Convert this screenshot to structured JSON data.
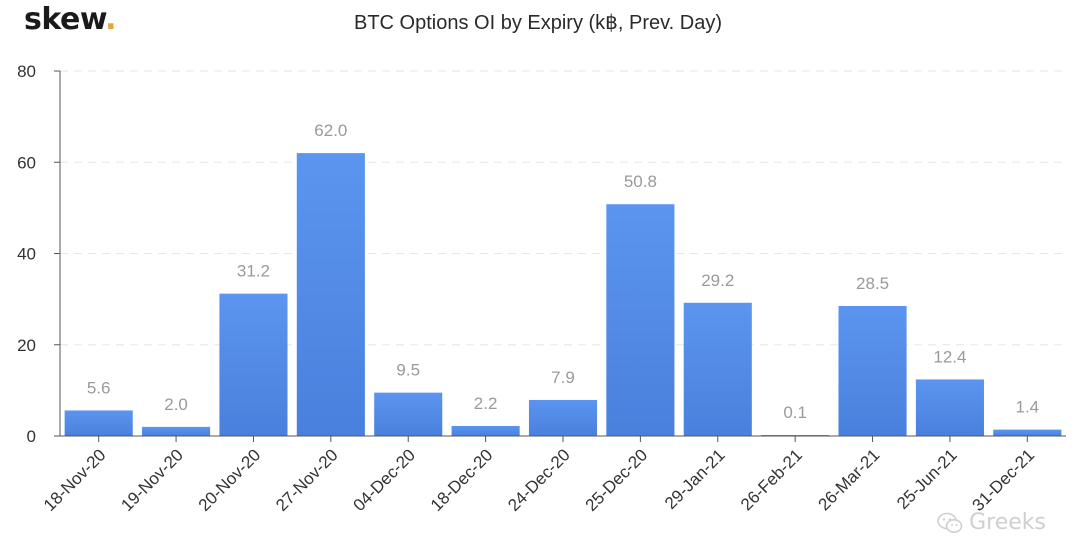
{
  "brand": {
    "name": "skew",
    "dot": ".",
    "dot_color": "#e8a33d"
  },
  "watermark": {
    "text": "Greeks",
    "icon": "wechat-icon"
  },
  "colors": {
    "bar_top": "#5b95f0",
    "bar_bottom": "#4a80dd",
    "grid": "#e6e6e6",
    "axis": "#555555",
    "label": "#9a9a9a"
  },
  "chart_data": {
    "type": "bar",
    "title": "BTC Options OI by Expiry (k฿, Prev. Day)",
    "categories": [
      "18-Nov-20",
      "19-Nov-20",
      "20-Nov-20",
      "27-Nov-20",
      "04-Dec-20",
      "18-Dec-20",
      "24-Dec-20",
      "25-Dec-20",
      "29-Jan-21",
      "26-Feb-21",
      "26-Mar-21",
      "25-Jun-21",
      "31-Dec-21"
    ],
    "values": [
      5.6,
      2.0,
      31.2,
      62.0,
      9.5,
      2.2,
      7.9,
      50.8,
      29.2,
      0.1,
      28.5,
      12.4,
      1.4
    ],
    "data_labels": [
      "5.6",
      "2.0",
      "31.2",
      "62.0",
      "9.5",
      "2.2",
      "7.9",
      "50.8",
      "29.2",
      "0.1",
      "28.5",
      "12.4",
      "1.4"
    ],
    "ylim": [
      0,
      80
    ],
    "yticks": [
      0,
      20,
      40,
      60,
      80
    ],
    "xlabel": "",
    "ylabel": "",
    "grid": true,
    "legend": "none"
  }
}
